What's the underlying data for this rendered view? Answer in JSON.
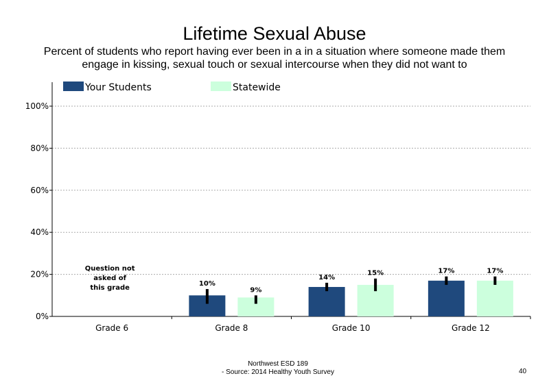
{
  "header": {
    "title": "Lifetime Sexual Abuse",
    "subtitle": "Percent of students who report having ever been in a in a situation where someone made them engage in kissing, sexual touch or sexual intercourse when they did not want to"
  },
  "footer": {
    "org": "Northwest ESD  189",
    "source": "- Source: 2014 Healthy  Youth Survey",
    "page": "40"
  },
  "colors": {
    "your_students": "#1f497d",
    "statewide": "#ccffdd",
    "error_bar": "#000000",
    "grid": "#aaaaaa"
  },
  "chart_data": {
    "type": "bar",
    "categories": [
      "Grade 6",
      "Grade 8",
      "Grade 10",
      "Grade 12"
    ],
    "series": [
      {
        "name": "Your Students",
        "values": [
          null,
          10,
          14,
          17
        ],
        "labels": [
          "",
          "10%",
          "14%",
          "17%"
        ],
        "error": [
          null,
          [
            6,
            13
          ],
          [
            12,
            16
          ],
          [
            15,
            19
          ]
        ]
      },
      {
        "name": "Statewide",
        "values": [
          null,
          9,
          15,
          17
        ],
        "labels": [
          "",
          "9%",
          "15%",
          "17%"
        ],
        "error": [
          null,
          [
            6,
            10
          ],
          [
            12,
            18
          ],
          [
            15,
            19
          ]
        ]
      }
    ],
    "y_ticks": [
      "0%",
      "20%",
      "40%",
      "60%",
      "80%",
      "100%"
    ],
    "ylim": [
      0,
      100
    ],
    "grid": true,
    "legend_placement": "top",
    "annotations": [
      {
        "category": "Grade 6",
        "lines": [
          "Question not",
          "asked of",
          "this grade"
        ]
      }
    ]
  }
}
